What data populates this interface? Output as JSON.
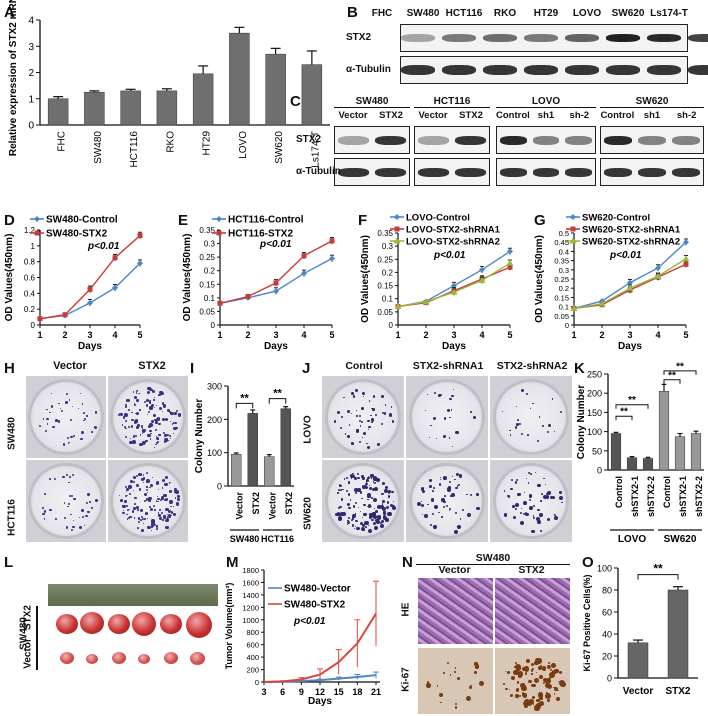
{
  "panels": {
    "A": {
      "letter": "A",
      "chart_data": {
        "type": "bar",
        "ylabel": "Relative expression of STX2 mRNA",
        "categories": [
          "FHC",
          "SW480",
          "HCT116",
          "RKO",
          "HT29",
          "LOVO",
          "SW620",
          "Ls174-T"
        ],
        "values": [
          1.0,
          1.25,
          1.3,
          1.3,
          1.95,
          3.5,
          2.7,
          2.3
        ],
        "errors": [
          0.08,
          0.05,
          0.06,
          0.08,
          0.3,
          0.22,
          0.22,
          0.52
        ],
        "yticks": [
          0,
          1,
          2,
          3,
          4
        ],
        "ylim": [
          0,
          4
        ]
      }
    },
    "B": {
      "letter": "B",
      "lanes": [
        "FHC",
        "SW480",
        "HCT116",
        "RKO",
        "HT29",
        "LOVO",
        "SW620",
        "Ls174-T"
      ],
      "rows": [
        "STX2",
        "α-Tubulin"
      ]
    },
    "C": {
      "letter": "C",
      "groups": [
        {
          "title": "SW480",
          "lanes": [
            "Vector",
            "STX2"
          ]
        },
        {
          "title": "HCT116",
          "lanes": [
            "Vector",
            "STX2"
          ]
        },
        {
          "title": "LOVO",
          "lanes": [
            "Control",
            "sh1",
            "sh-2"
          ]
        },
        {
          "title": "SW620",
          "lanes": [
            "Control",
            "sh1",
            "sh-2"
          ]
        }
      ],
      "rows": [
        "STX2",
        "α-Tubulin"
      ]
    },
    "D": {
      "letter": "D",
      "chart_data": {
        "type": "line",
        "xlabel": "Days",
        "ylabel": "OD Values(450nm)",
        "x": [
          1,
          2,
          3,
          4,
          5
        ],
        "xlim": [
          1,
          5
        ],
        "ylim": [
          0,
          1.2
        ],
        "yticks": [
          0,
          0.2,
          0.4,
          0.6,
          0.8,
          1.0,
          1.2
        ],
        "annotation": "p<0.01",
        "series": [
          {
            "name": "SW480-Control",
            "values": [
              0.08,
              0.12,
              0.28,
              0.47,
              0.78
            ],
            "color": "#4a86c8",
            "marker": "diamond"
          },
          {
            "name": "SW480-STX2",
            "values": [
              0.08,
              0.13,
              0.45,
              0.85,
              1.13
            ],
            "color": "#c83a3a",
            "marker": "square"
          }
        ]
      }
    },
    "E": {
      "letter": "E",
      "chart_data": {
        "type": "line",
        "xlabel": "Days",
        "ylabel": "OD Values(450nm)",
        "x": [
          1,
          2,
          3,
          4,
          5
        ],
        "xlim": [
          1,
          5
        ],
        "ylim": [
          0,
          0.35
        ],
        "yticks": [
          0,
          0.05,
          0.1,
          0.15,
          0.2,
          0.25,
          0.3,
          0.35
        ],
        "annotation": "p<0.01",
        "series": [
          {
            "name": "HCT116-Control",
            "values": [
              0.08,
              0.1,
              0.125,
              0.19,
              0.245
            ],
            "color": "#4a86c8",
            "marker": "diamond"
          },
          {
            "name": "HCT116-STX2",
            "values": [
              0.08,
              0.105,
              0.155,
              0.255,
              0.31
            ],
            "color": "#c83a3a",
            "marker": "square"
          }
        ]
      }
    },
    "F": {
      "letter": "F",
      "chart_data": {
        "type": "line",
        "xlabel": "Days",
        "ylabel": "OD Values(450nm)",
        "x": [
          1,
          2,
          3,
          4,
          5
        ],
        "xlim": [
          1,
          5
        ],
        "ylim": [
          0,
          0.35
        ],
        "yticks": [
          0,
          0.05,
          0.1,
          0.15,
          0.2,
          0.25,
          0.3,
          0.35
        ],
        "annotation": "p<0.01",
        "series": [
          {
            "name": "LOVO-Control",
            "values": [
              0.07,
              0.09,
              0.15,
              0.21,
              0.28
            ],
            "color": "#4a86c8",
            "marker": "diamond"
          },
          {
            "name": "LOVO-STX2-shRNA1",
            "values": [
              0.07,
              0.085,
              0.13,
              0.175,
              0.22
            ],
            "color": "#c83a3a",
            "marker": "square"
          },
          {
            "name": "LOVO-STX2-shRNA2",
            "values": [
              0.07,
              0.088,
              0.125,
              0.17,
              0.235
            ],
            "color": "#9ab83a",
            "marker": "triangle"
          }
        ]
      }
    },
    "G": {
      "letter": "G",
      "chart_data": {
        "type": "line",
        "xlabel": "Days",
        "ylabel": "OD Values(450nm)",
        "x": [
          1,
          2,
          3,
          4,
          5
        ],
        "xlim": [
          1,
          5
        ],
        "ylim": [
          0,
          0.5
        ],
        "yticks": [
          0,
          0.05,
          0.1,
          0.15,
          0.2,
          0.25,
          0.3,
          0.35,
          0.4,
          0.45,
          0.5
        ],
        "annotation": "p<0.01",
        "series": [
          {
            "name": "SW620-Control",
            "values": [
              0.09,
              0.13,
              0.23,
              0.31,
              0.45
            ],
            "color": "#4a86c8",
            "marker": "diamond"
          },
          {
            "name": "SW620-STX2-shRNA1",
            "values": [
              0.09,
              0.11,
              0.19,
              0.26,
              0.33
            ],
            "color": "#c83a3a",
            "marker": "square"
          },
          {
            "name": "SW620-STX2-shRNA2",
            "values": [
              0.09,
              0.115,
              0.2,
              0.265,
              0.36
            ],
            "color": "#9ab83a",
            "marker": "triangle"
          }
        ]
      }
    },
    "H": {
      "letter": "H",
      "cols": [
        "Vector",
        "STX2"
      ],
      "rows": [
        "SW480",
        "HCT116"
      ]
    },
    "I": {
      "letter": "I",
      "chart_data": {
        "type": "bar",
        "ylabel": "Colony Number",
        "categories": [
          "Vector",
          "STX2",
          "Vector",
          "STX2"
        ],
        "groups": [
          "SW480",
          "HCT116"
        ],
        "values": [
          95,
          218,
          88,
          232
        ],
        "errors": [
          4,
          10,
          6,
          6
        ],
        "colors": [
          "#999999",
          "#555555",
          "#999999",
          "#555555"
        ],
        "yticks": [
          0,
          100,
          200,
          300
        ],
        "ylim": [
          0,
          300
        ],
        "sig": [
          "**",
          "**"
        ]
      }
    },
    "J": {
      "letter": "J",
      "cols": [
        "Control",
        "STX2-shRNA1",
        "STX2-shRNA2"
      ],
      "rows": [
        "LOVO",
        "SW620"
      ]
    },
    "K": {
      "letter": "K",
      "chart_data": {
        "type": "bar",
        "ylabel": "Colony Number",
        "categories": [
          "Control",
          "shSTX2-1",
          "shSTX2-2",
          "Control",
          "shSTX2-1",
          "shSTX2-2"
        ],
        "groups": [
          "LOVO",
          "SW620"
        ],
        "values": [
          95,
          32,
          30,
          205,
          87,
          95
        ],
        "errors": [
          3,
          3,
          3,
          18,
          8,
          6
        ],
        "colors": [
          "#555555",
          "#555555",
          "#555555",
          "#999999",
          "#999999",
          "#999999"
        ],
        "yticks": [
          0,
          50,
          100,
          150,
          200,
          250
        ],
        "ylim": [
          0,
          250
        ],
        "sig": [
          "**",
          "**",
          "**",
          "**"
        ]
      }
    },
    "L": {
      "letter": "L",
      "row_labels": [
        "SW480",
        "STX2",
        "Vector"
      ]
    },
    "M": {
      "letter": "M",
      "chart_data": {
        "type": "line",
        "xlabel": "Days",
        "ylabel": "Tumor Volume(mm³)",
        "x": [
          3,
          6,
          9,
          12,
          15,
          18,
          21
        ],
        "ylim": [
          0,
          1800
        ],
        "yticks": [
          0,
          200,
          400,
          600,
          800,
          1000,
          1200,
          1400,
          1600,
          1800
        ],
        "xticks": [
          3,
          6,
          9,
          12,
          15,
          18,
          21
        ],
        "annotation": "p<0.01",
        "series": [
          {
            "name": "SW480-Vector",
            "values": [
              0,
              5,
              15,
              30,
              55,
              80,
              110
            ],
            "color": "#4a86c8"
          },
          {
            "name": "SW480-STX2",
            "values": [
              0,
              10,
              40,
              120,
              320,
              620,
              1100
            ],
            "color": "#d9463b"
          }
        ],
        "errors": [
          [
            0,
            5,
            10,
            15,
            25,
            40,
            50
          ],
          [
            0,
            10,
            30,
            90,
            200,
            380,
            520
          ]
        ]
      }
    },
    "N": {
      "letter": "N",
      "title": "SW480",
      "cols": [
        "Vector",
        "STX2"
      ],
      "rows": [
        "HE",
        "Ki-67"
      ]
    },
    "O": {
      "letter": "O",
      "chart_data": {
        "type": "bar",
        "ylabel": "Ki-67 Positive Cells(%)",
        "categories": [
          "Vector",
          "STX2"
        ],
        "values": [
          32,
          80
        ],
        "errors": [
          2.5,
          3
        ],
        "yticks": [
          0,
          20,
          40,
          60,
          80,
          100
        ],
        "ylim": [
          0,
          100
        ],
        "sig": [
          "**"
        ]
      }
    }
  }
}
